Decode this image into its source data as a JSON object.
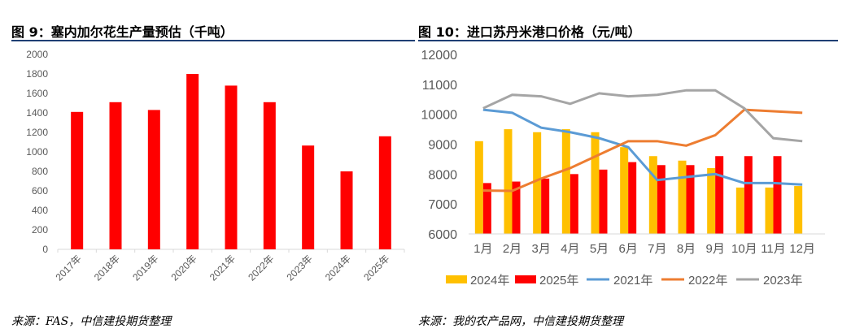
{
  "left": {
    "title": "图 9：塞内加尔花生产量预估（千吨）",
    "source": "来源：FAS，中信建投期货整理"
  },
  "right": {
    "title": "图 10：进口苏丹米港口价格（元/吨）",
    "source": "来源：我的农产品网，中信建投期货整理"
  },
  "chart_data": [
    {
      "type": "bar",
      "categories": [
        "2017年",
        "2018年",
        "2019年",
        "2020年",
        "2021年",
        "2022年",
        "2023年",
        "2024年",
        "2025年"
      ],
      "values": [
        1410,
        1510,
        1430,
        1800,
        1680,
        1510,
        1065,
        800,
        1160
      ],
      "ylim": [
        0,
        2000
      ],
      "yticks": [
        0,
        200,
        400,
        600,
        800,
        1000,
        1200,
        1400,
        1600,
        1800,
        2000
      ],
      "color": "#ff0000",
      "grid": false
    },
    {
      "type": "bar+line",
      "categories": [
        "1月",
        "2月",
        "3月",
        "4月",
        "5月",
        "6月",
        "7月",
        "8月",
        "9月",
        "10月",
        "11月",
        "12月"
      ],
      "ylim": [
        6000,
        12000
      ],
      "yticks": [
        6000,
        7000,
        8000,
        9000,
        10000,
        11000,
        12000
      ],
      "grid": false,
      "legend": "bottom",
      "bars": [
        {
          "name": "2024年",
          "color": "#ffc000",
          "values": [
            9100,
            9500,
            9400,
            9500,
            9400,
            8900,
            8600,
            8450,
            8200,
            7550,
            7550,
            7600
          ]
        },
        {
          "name": "2025年",
          "color": "#ff0000",
          "values": [
            7700,
            7750,
            7850,
            8000,
            8150,
            8400,
            8300,
            8300,
            8600,
            8600,
            8600,
            null
          ]
        }
      ],
      "lines": [
        {
          "name": "2021年",
          "color": "#5b9bd5",
          "values": [
            10150,
            10050,
            9550,
            9400,
            9200,
            8900,
            7800,
            7900,
            8000,
            7700,
            7700,
            7650
          ]
        },
        {
          "name": "2022年",
          "color": "#ed7d31",
          "values": [
            7450,
            7440,
            7850,
            8200,
            8650,
            9100,
            9100,
            8950,
            9300,
            10150,
            10100,
            10050
          ]
        },
        {
          "name": "2023年",
          "color": "#a5a5a5",
          "values": [
            10200,
            10650,
            10600,
            10350,
            10700,
            10600,
            10650,
            10800,
            10800,
            10200,
            9200,
            9100
          ]
        }
      ]
    }
  ]
}
